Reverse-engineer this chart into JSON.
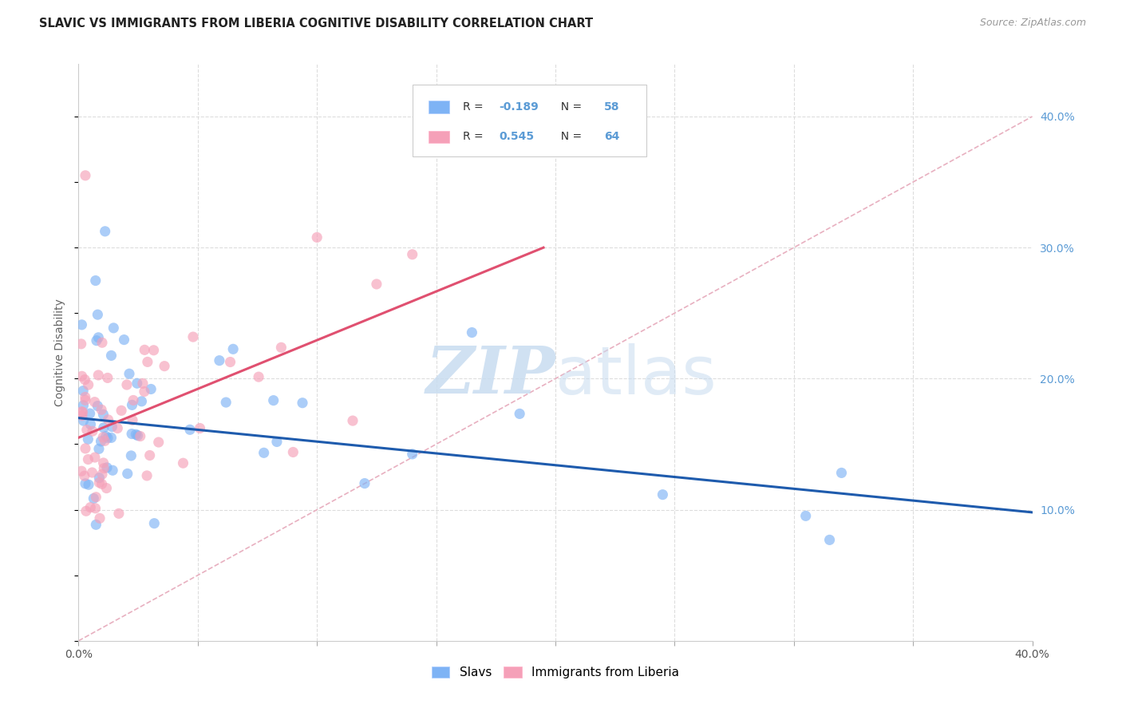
{
  "title": "SLAVIC VS IMMIGRANTS FROM LIBERIA COGNITIVE DISABILITY CORRELATION CHART",
  "source": "Source: ZipAtlas.com",
  "ylabel": "Cognitive Disability",
  "watermark_zip": "ZIP",
  "watermark_atlas": "atlas",
  "xlim": [
    0.0,
    0.4
  ],
  "ylim": [
    0.0,
    0.44
  ],
  "blue_color": "#7EB3F5",
  "pink_color": "#F5A0B8",
  "blue_line_color": "#1E5BAD",
  "pink_line_color": "#E05070",
  "dashed_line_color": "#E8B0C0",
  "legend_R_blue": "-0.189",
  "legend_N_blue": "58",
  "legend_R_pink": "0.545",
  "legend_N_pink": "64",
  "legend_label_blue": "Slavs",
  "legend_label_pink": "Immigrants from Liberia",
  "blue_trend_x0": 0.0,
  "blue_trend_y0": 0.17,
  "blue_trend_x1": 0.4,
  "blue_trend_y1": 0.098,
  "pink_trend_x0": 0.0,
  "pink_trend_y0": 0.155,
  "pink_trend_x1": 0.195,
  "pink_trend_y1": 0.3,
  "right_ytick_color": "#5B9BD5"
}
